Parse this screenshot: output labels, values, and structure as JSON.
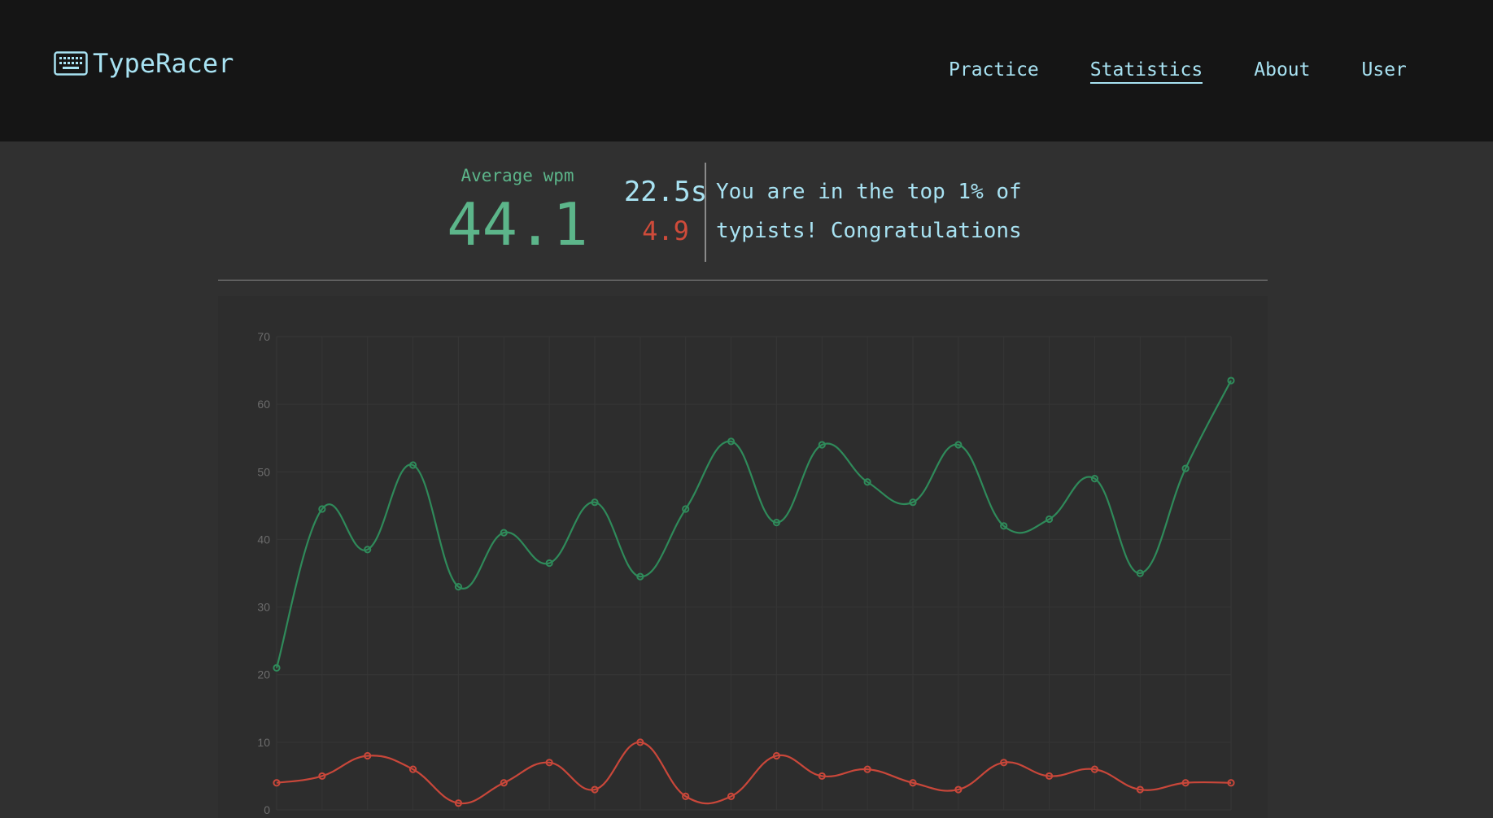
{
  "app": {
    "title": "TypeRacer",
    "logo_icon": "keyboard-icon"
  },
  "nav": {
    "items": [
      {
        "label": "Practice",
        "active": false
      },
      {
        "label": "Statistics",
        "active": true
      },
      {
        "label": "About",
        "active": false
      },
      {
        "label": "User",
        "active": false
      }
    ]
  },
  "stats": {
    "average_label": "Average wpm",
    "average_value": "44.1",
    "time_value": "22.5s",
    "accuracy_value": "4.9",
    "message": "You are in the top 1% of typists! Congratulations"
  },
  "colors": {
    "accent_text": "#a8e2f2",
    "wpm_green": "#5cb58a",
    "error_red": "#cf4b3a",
    "wpm_line": "#2f8a5a",
    "error_line": "#c9473a"
  },
  "chart_data": {
    "type": "line",
    "ylim": [
      0,
      70
    ],
    "yticks": [
      0,
      10,
      20,
      30,
      40,
      50,
      60,
      70
    ],
    "x": [
      1,
      2,
      3,
      4,
      5,
      6,
      7,
      8,
      9,
      10,
      11,
      12,
      13,
      14,
      15,
      16,
      17,
      18,
      19,
      20,
      21,
      22
    ],
    "series": [
      {
        "key": "wpm",
        "values": [
          21,
          44.5,
          38.5,
          51,
          33,
          41,
          36.5,
          45.5,
          34.5,
          44.5,
          54.5,
          42.5,
          54,
          48.5,
          45.5,
          54,
          42,
          43,
          49,
          35,
          50.5,
          63.5
        ]
      },
      {
        "key": "errors",
        "values": [
          4,
          5,
          8,
          6,
          1,
          4,
          7,
          3,
          10,
          2,
          2,
          8,
          5,
          6,
          4,
          3,
          7,
          5,
          6,
          3,
          4,
          4
        ]
      }
    ],
    "grid": true,
    "legend": "none"
  }
}
